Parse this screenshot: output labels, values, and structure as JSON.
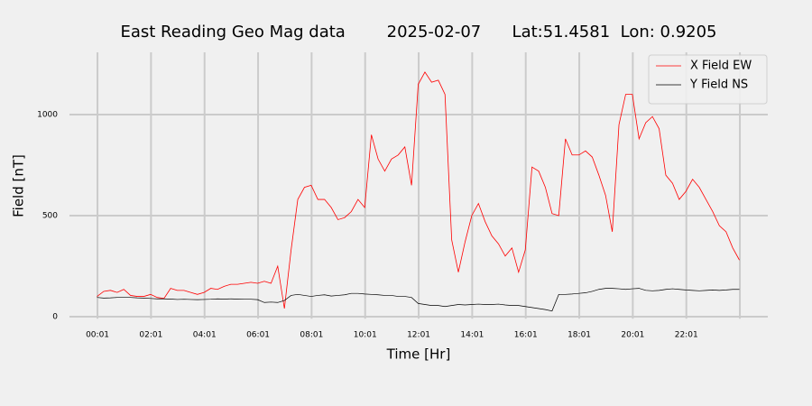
{
  "chart_data": {
    "type": "line",
    "title": "East Reading Geo Mag data        2025-02-07      Lat:51.4581  Lon: 0.9205",
    "xlabel": "Time  [Hr]",
    "ylabel": "Field  [nT]",
    "x": [
      0,
      0.25,
      0.5,
      0.75,
      1,
      1.25,
      1.5,
      1.75,
      2,
      2.25,
      2.5,
      2.75,
      3,
      3.25,
      3.5,
      3.75,
      4,
      4.25,
      4.5,
      4.75,
      5,
      5.25,
      5.5,
      5.75,
      6,
      6.25,
      6.5,
      6.75,
      7,
      7.25,
      7.5,
      7.75,
      8,
      8.25,
      8.5,
      8.75,
      9,
      9.25,
      9.5,
      9.75,
      10,
      10.25,
      10.5,
      10.75,
      11,
      11.25,
      11.5,
      11.75,
      12,
      12.25,
      12.5,
      12.75,
      13,
      13.25,
      13.5,
      13.75,
      14,
      14.25,
      14.5,
      14.75,
      15,
      15.25,
      15.5,
      15.75,
      16,
      16.25,
      16.5,
      16.75,
      17,
      17.25,
      17.5,
      17.75,
      18,
      18.25,
      18.5,
      18.75,
      19,
      19.25,
      19.5,
      19.75,
      20,
      20.25,
      20.5,
      20.75,
      21,
      21.25,
      21.5,
      21.75,
      22,
      22.25,
      22.5,
      22.75,
      23,
      23.25,
      23.5,
      23.75,
      24
    ],
    "series": [
      {
        "name": "X Field EW",
        "color": "#ff0000",
        "values": [
          100,
          125,
          130,
          120,
          135,
          105,
          100,
          100,
          110,
          95,
          90,
          140,
          130,
          130,
          120,
          110,
          120,
          140,
          135,
          150,
          160,
          160,
          165,
          170,
          165,
          175,
          165,
          250,
          40,
          330,
          580,
          640,
          650,
          580,
          580,
          540,
          480,
          490,
          520,
          580,
          540,
          900,
          780,
          720,
          780,
          800,
          840,
          650,
          1150,
          1210,
          1160,
          1170,
          1100,
          380,
          220,
          370,
          500,
          560,
          470,
          400,
          360,
          300,
          340,
          220,
          330,
          740,
          720,
          640,
          510,
          500,
          880,
          800,
          800,
          820,
          790,
          700,
          600,
          420,
          950,
          1100,
          1100,
          880,
          960,
          990,
          930,
          700,
          660,
          580,
          620,
          680,
          640,
          580,
          520,
          450,
          420,
          340,
          280
        ]
      },
      {
        "name": "Y Field NS",
        "color": "#000000",
        "values": [
          95,
          92,
          93,
          95,
          95,
          95,
          93,
          92,
          90,
          88,
          88,
          87,
          85,
          86,
          85,
          84,
          85,
          86,
          88,
          87,
          88,
          87,
          86,
          86,
          84,
          70,
          72,
          70,
          80,
          105,
          110,
          105,
          100,
          105,
          108,
          102,
          105,
          108,
          115,
          115,
          112,
          110,
          108,
          105,
          105,
          100,
          100,
          95,
          65,
          60,
          55,
          55,
          50,
          55,
          60,
          58,
          60,
          62,
          60,
          60,
          62,
          58,
          55,
          55,
          50,
          45,
          40,
          35,
          28,
          110,
          110,
          112,
          115,
          118,
          125,
          135,
          140,
          140,
          138,
          135,
          138,
          140,
          130,
          128,
          130,
          135,
          138,
          135,
          132,
          130,
          128,
          130,
          132,
          130,
          132,
          135,
          135
        ]
      }
    ],
    "xlim": [
      -1.03,
      25.06
    ],
    "xticks": [
      {
        "value": 0.0167,
        "label": "00:01"
      },
      {
        "value": 2.0167,
        "label": "02:01"
      },
      {
        "value": 4.0167,
        "label": "04:01"
      },
      {
        "value": 6.0167,
        "label": "06:01"
      },
      {
        "value": 8.0167,
        "label": "08:01"
      },
      {
        "value": 10.0167,
        "label": "10:01"
      },
      {
        "value": 12.0167,
        "label": "12:01"
      },
      {
        "value": 14.0167,
        "label": "14:01"
      },
      {
        "value": 16.0167,
        "label": "16:01"
      },
      {
        "value": 18.0167,
        "label": "18:01"
      },
      {
        "value": 20.0167,
        "label": "20:01"
      },
      {
        "value": 22.0167,
        "label": "22:01"
      },
      {
        "value": 24.0167,
        "label": null
      }
    ],
    "ylim": [
      -10,
      1308
    ],
    "yticks": [
      0,
      500,
      1000
    ],
    "grid": true,
    "legend": "upper right"
  }
}
